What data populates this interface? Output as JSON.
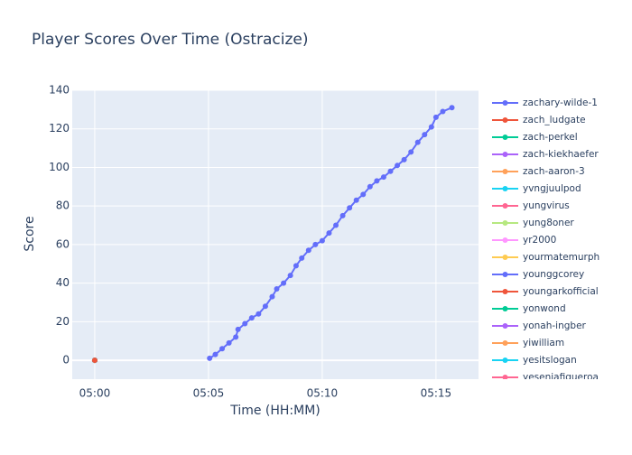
{
  "chart_data": {
    "type": "line",
    "title": "Player Scores Over Time (Ostracize)",
    "x_label": "Time (HH:MM)",
    "y_label": "Score",
    "xlim": [
      299.01,
      316.87
    ],
    "ylim": [
      -9.8,
      140
    ],
    "xticks": [
      {
        "value": 300,
        "label": "05:00"
      },
      {
        "value": 305,
        "label": "05:05"
      },
      {
        "value": 310,
        "label": "05:10"
      },
      {
        "value": 315,
        "label": "05:15"
      }
    ],
    "yticks": [
      0,
      20,
      40,
      60,
      80,
      100,
      120,
      140
    ],
    "grid": true,
    "legend": "right",
    "series": [
      {
        "name": "zachary-wilde-1",
        "color": "#636efa",
        "x": [
          305.05,
          305.3,
          305.6,
          305.9,
          306.2,
          306.3,
          306.6,
          306.9,
          307.2,
          307.5,
          307.8,
          308.0,
          308.3,
          308.6,
          308.85,
          309.1,
          309.4,
          309.7,
          310.0,
          310.3,
          310.6,
          310.9,
          311.2,
          311.5,
          311.8,
          312.1,
          312.4,
          312.7,
          313.0,
          313.3,
          313.6,
          313.9,
          314.2,
          314.5,
          314.8,
          315.0,
          315.3,
          315.7
        ],
        "values": [
          1,
          3,
          6,
          9,
          12,
          16,
          19,
          22,
          24,
          28,
          33,
          37,
          40,
          44,
          49,
          53,
          57,
          60,
          62,
          66,
          70,
          75,
          79,
          83,
          86,
          90,
          93,
          95,
          98,
          101,
          104,
          108,
          113,
          117,
          121,
          126,
          129,
          131
        ]
      },
      {
        "name": "zach_ludgate",
        "color": "#EF553B",
        "x": [
          300
        ],
        "values": [
          0
        ]
      },
      {
        "name": "zach-perkel",
        "color": "#00cc96",
        "x": [
          300
        ],
        "values": [
          0
        ]
      },
      {
        "name": "zach-kiekhaefer",
        "color": "#ab63fa",
        "x": [
          300
        ],
        "values": [
          0
        ]
      },
      {
        "name": "zach-aaron-3",
        "color": "#FFA15A",
        "x": [
          300
        ],
        "values": [
          0
        ]
      },
      {
        "name": "yvngjuulpod",
        "color": "#19d3f3",
        "x": [
          300
        ],
        "values": [
          0
        ]
      },
      {
        "name": "yungvirus",
        "color": "#FF6692",
        "x": [
          300
        ],
        "values": [
          0
        ]
      },
      {
        "name": "yung8oner",
        "color": "#B6E880",
        "x": [
          300
        ],
        "values": [
          0
        ]
      },
      {
        "name": "yr2000",
        "color": "#FF97FF",
        "x": [
          300
        ],
        "values": [
          0
        ]
      },
      {
        "name": "yourmatemurph",
        "color": "#FECB52",
        "x": [
          300
        ],
        "values": [
          0
        ]
      },
      {
        "name": "younggcorey",
        "color": "#636efa",
        "x": [
          300
        ],
        "values": [
          0
        ]
      },
      {
        "name": "youngarkofficial",
        "color": "#EF553B",
        "x": [
          300
        ],
        "values": [
          0
        ]
      },
      {
        "name": "yonwond",
        "color": "#00cc96",
        "x": [
          300
        ],
        "values": [
          0
        ]
      },
      {
        "name": "yonah-ingber",
        "color": "#ab63fa",
        "x": [
          300
        ],
        "values": [
          0
        ]
      },
      {
        "name": "yiwilliam",
        "color": "#FFA15A",
        "x": [
          300
        ],
        "values": [
          0
        ]
      },
      {
        "name": "yesitslogan",
        "color": "#19d3f3",
        "x": [
          300
        ],
        "values": [
          0
        ]
      },
      {
        "name": "yesenjafigueroa",
        "color": "#FF6692",
        "x": [
          300
        ],
        "values": [
          0
        ]
      }
    ]
  }
}
